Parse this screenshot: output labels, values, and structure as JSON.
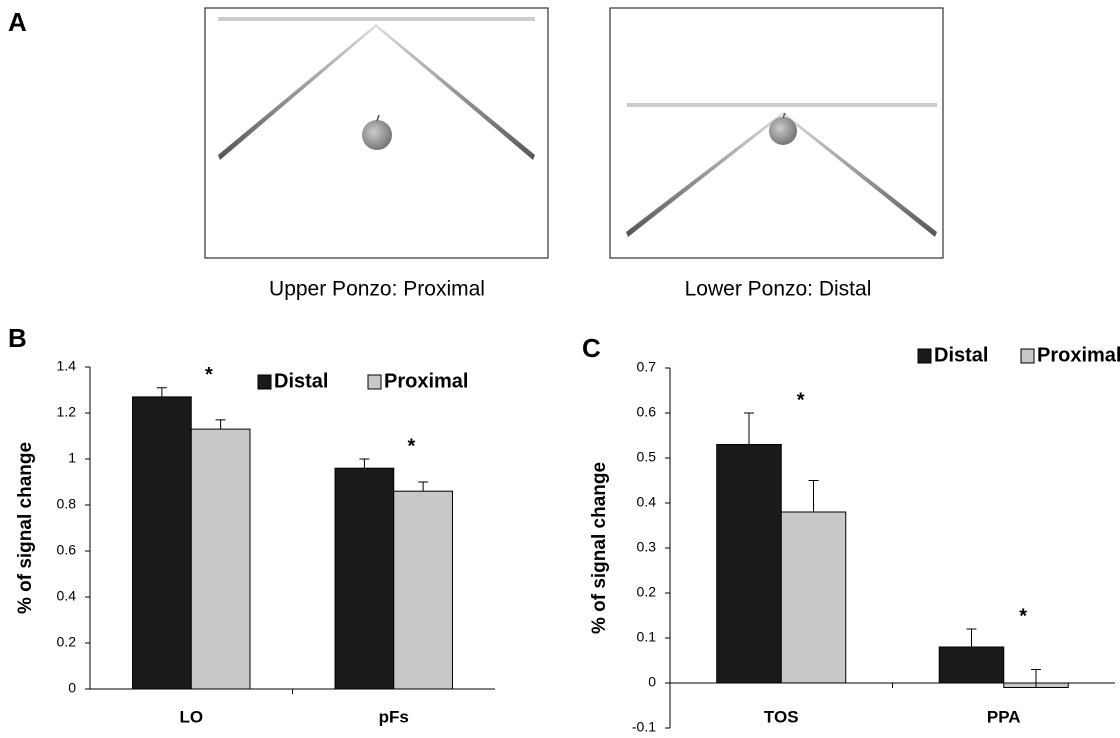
{
  "panel_labels": [
    "A",
    "B",
    "C"
  ],
  "captions": [
    "Upper Ponzo: Proximal",
    "Lower Ponzo: Distal"
  ],
  "chart_data": [
    {
      "type": "bar",
      "ylabel": "% of signal change",
      "categories": [
        "LO",
        "pFs"
      ],
      "series": [
        {
          "name": "Distal",
          "color": "#1a1a1a",
          "values": [
            1.27,
            0.96
          ],
          "errors": [
            0.04,
            0.04
          ]
        },
        {
          "name": "Proximal",
          "color": "#c8c8c8",
          "values": [
            1.13,
            0.86
          ],
          "errors": [
            0.04,
            0.04
          ]
        }
      ],
      "annotations": [
        "*",
        "*"
      ],
      "ylim": [
        0,
        1.4
      ],
      "yticks": [
        0,
        0.2,
        0.4,
        0.6,
        0.8,
        1,
        1.2,
        1.4
      ]
    },
    {
      "type": "bar",
      "ylabel": "% of signal change",
      "categories": [
        "TOS",
        "PPA"
      ],
      "series": [
        {
          "name": "Distal",
          "color": "#1a1a1a",
          "values": [
            0.53,
            0.08
          ],
          "errors": [
            0.07,
            0.04
          ]
        },
        {
          "name": "Proximal",
          "color": "#c8c8c8",
          "values": [
            0.38,
            -0.01
          ],
          "errors": [
            0.07,
            0.04
          ]
        }
      ],
      "annotations": [
        "*",
        "*"
      ],
      "ylim": [
        -0.1,
        0.7
      ],
      "yticks": [
        -0.1,
        0,
        0.1,
        0.2,
        0.3,
        0.4,
        0.5,
        0.6,
        0.7
      ]
    }
  ]
}
